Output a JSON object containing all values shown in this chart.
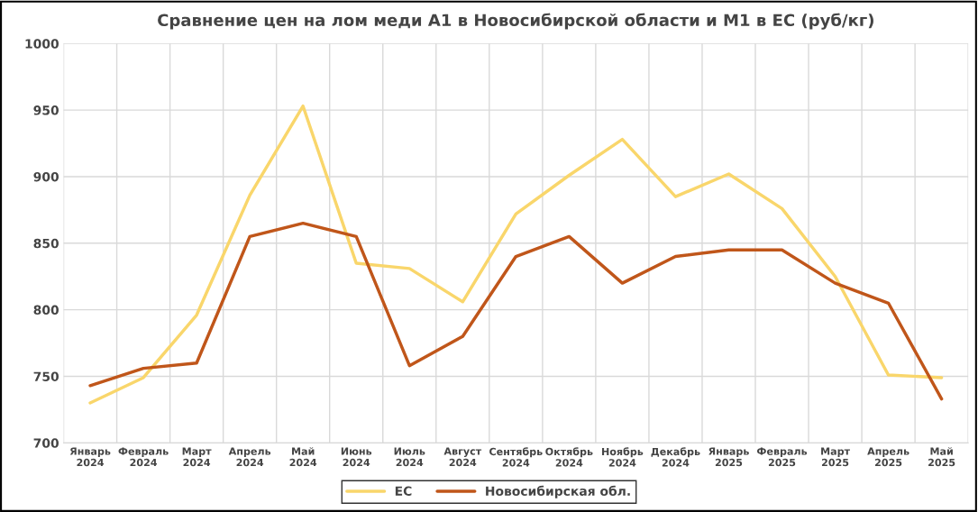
{
  "chart_data": {
    "type": "line",
    "title": "Сравнение цен на лом меди А1 в Новосибирской области и М1 в ЕС (руб/кг)",
    "categories": [
      "Январь\n2024",
      "Февраль\n2024",
      "Март\n2024",
      "Апрель\n2024",
      "Май\n2024",
      "Июнь\n2024",
      "Июль\n2024",
      "Август\n2024",
      "Сентябрь\n2024",
      "Октябрь\n2024",
      "Ноябрь\n2024",
      "Декабрь\n2024",
      "Январь\n2025",
      "Февраль\n2025",
      "Март\n2025",
      "Апрель\n2025",
      "Май\n2025"
    ],
    "series": [
      {
        "name": "ЕС",
        "color": "#f9d66b",
        "values": [
          730,
          749,
          796,
          886,
          953,
          835,
          831,
          806,
          872,
          901,
          928,
          885,
          902,
          876,
          825,
          751,
          749
        ]
      },
      {
        "name": "Новосибирская обл.",
        "color": "#c0561a",
        "values": [
          743,
          756,
          760,
          855,
          865,
          855,
          758,
          780,
          840,
          855,
          820,
          840,
          845,
          845,
          820,
          805,
          733
        ]
      }
    ],
    "ylim": [
      700,
      1000
    ],
    "yticks": [
      700,
      750,
      800,
      850,
      900,
      950,
      1000
    ],
    "grid": true,
    "legend": "bottom",
    "line_style": "solid",
    "marker": "none"
  }
}
